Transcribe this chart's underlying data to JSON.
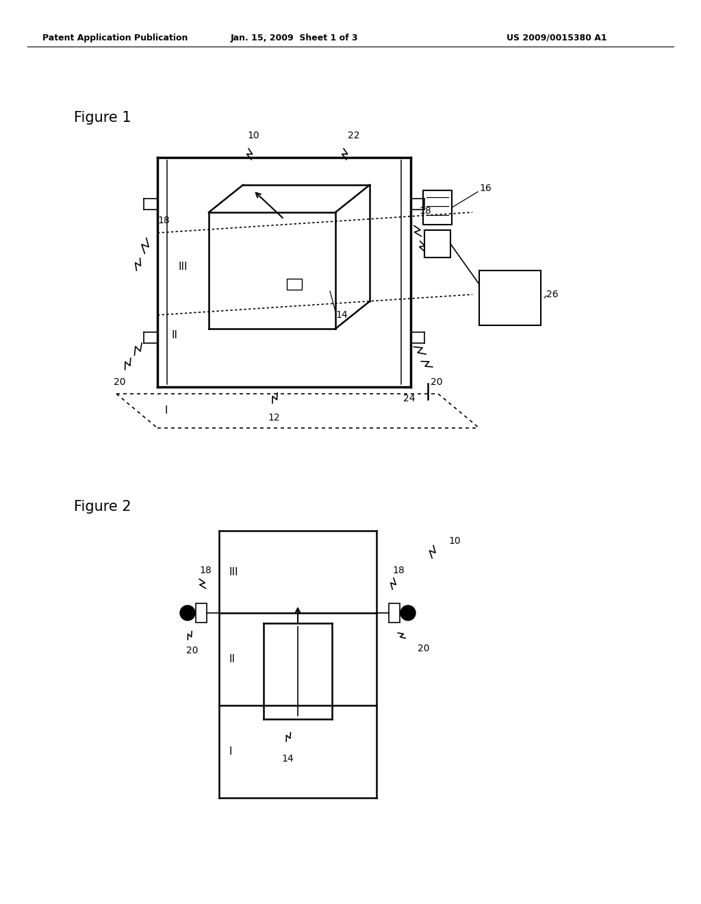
{
  "bg_color": "#ffffff",
  "line_color": "#000000",
  "header_left": "Patent Application Publication",
  "header_mid": "Jan. 15, 2009  Sheet 1 of 3",
  "header_right": "US 2009/0015380 A1",
  "fig1_label": "Figure 1",
  "fig2_label": "Figure 2"
}
